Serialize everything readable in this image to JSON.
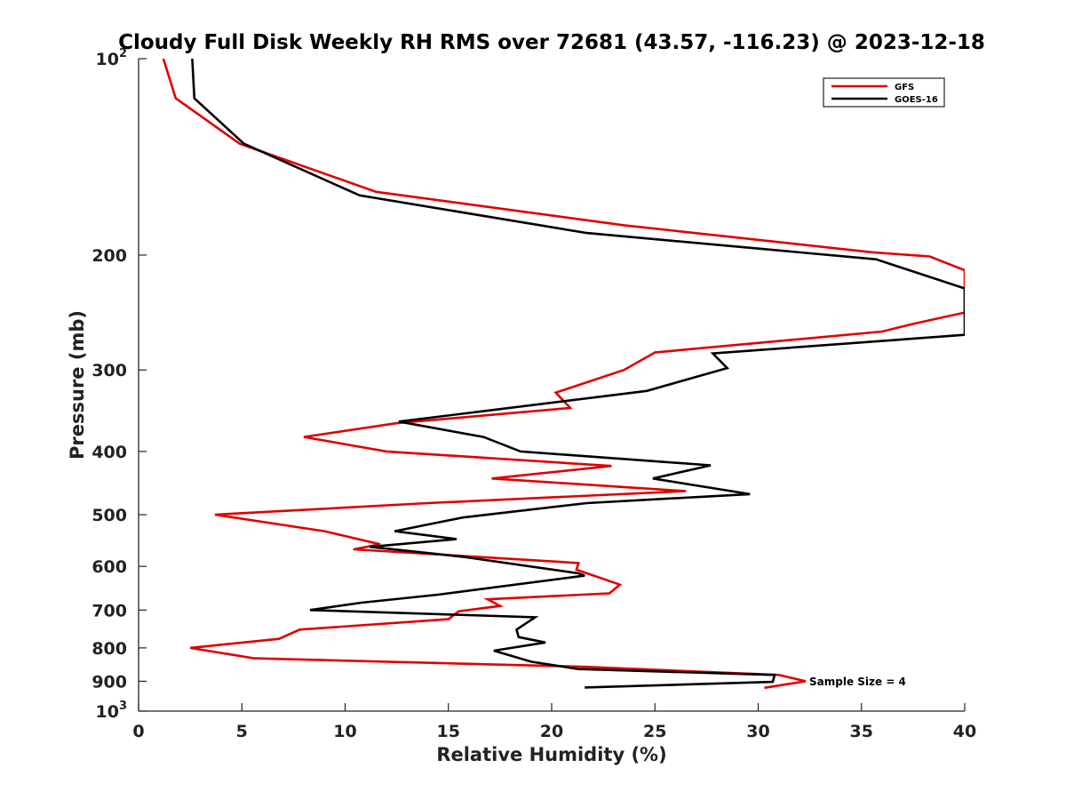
{
  "chart_data": {
    "type": "line",
    "title": "Cloudy Full Disk Weekly RH RMS over 72681 (43.57, -116.23) @ 2023-12-18",
    "xlabel": "Relative Humidity (%)",
    "ylabel": "Pressure (mb)",
    "xlim": [
      0,
      40
    ],
    "ylim": [
      100,
      1000
    ],
    "y_scale": "log",
    "y_reversed": true,
    "grid": false,
    "legend_position": "top-right",
    "x_ticks": [
      "0",
      "5",
      "10",
      "15",
      "20",
      "25",
      "30",
      "35",
      "40"
    ],
    "y_ticks": [
      {
        "value": 100,
        "label": "10",
        "exp": "2"
      },
      {
        "value": 200,
        "label": "200"
      },
      {
        "value": 300,
        "label": "300"
      },
      {
        "value": 400,
        "label": "400"
      },
      {
        "value": 500,
        "label": "500"
      },
      {
        "value": 600,
        "label": "600"
      },
      {
        "value": 700,
        "label": "700"
      },
      {
        "value": 800,
        "label": "800"
      },
      {
        "value": 900,
        "label": "900"
      },
      {
        "value": 1000,
        "label": "10",
        "exp": "3"
      }
    ],
    "annotation": "Sample Size = 4",
    "series": [
      {
        "name": "GFS",
        "color": "#e00000",
        "points": [
          [
            1.2,
            100
          ],
          [
            1.8,
            115
          ],
          [
            4.9,
            135
          ],
          [
            11.5,
            160
          ],
          [
            23.5,
            180
          ],
          [
            35.5,
            198
          ],
          [
            38.3,
            201
          ],
          [
            40,
            211
          ],
          [
            40,
            245
          ],
          [
            37.5,
            255
          ],
          [
            36.0,
            262
          ],
          [
            25.0,
            282
          ],
          [
            23.5,
            300
          ],
          [
            20.2,
            325
          ],
          [
            20.9,
            343
          ],
          [
            12.5,
            362
          ],
          [
            8.0,
            380
          ],
          [
            12.0,
            400
          ],
          [
            22.9,
            421
          ],
          [
            17.1,
            440
          ],
          [
            26.5,
            460
          ],
          [
            14.0,
            480
          ],
          [
            3.7,
            500
          ],
          [
            9.0,
            530
          ],
          [
            11.7,
            555
          ],
          [
            10.4,
            565
          ],
          [
            21.3,
            593
          ],
          [
            21.2,
            607
          ],
          [
            23.3,
            640
          ],
          [
            22.8,
            660
          ],
          [
            16.9,
            674
          ],
          [
            17.5,
            690
          ],
          [
            15.5,
            703
          ],
          [
            15.0,
            723
          ],
          [
            7.8,
            750
          ],
          [
            6.8,
            775
          ],
          [
            2.5,
            800
          ],
          [
            5.6,
            830
          ],
          [
            21.5,
            855
          ],
          [
            31.0,
            880
          ],
          [
            32.3,
            900
          ],
          [
            30.3,
            921
          ]
        ]
      },
      {
        "name": "GOES-16",
        "color": "#000000",
        "points": [
          [
            2.6,
            100
          ],
          [
            2.7,
            115
          ],
          [
            5.1,
            135
          ],
          [
            10.7,
            162
          ],
          [
            21.7,
            185
          ],
          [
            35.7,
            203
          ],
          [
            40,
            225
          ],
          [
            40,
            265
          ],
          [
            27.8,
            283
          ],
          [
            28.5,
            298
          ],
          [
            24.6,
            323
          ],
          [
            17.3,
            345
          ],
          [
            12.6,
            360
          ],
          [
            16.7,
            380
          ],
          [
            18.5,
            400
          ],
          [
            27.7,
            420
          ],
          [
            24.9,
            440
          ],
          [
            29.6,
            465
          ],
          [
            21.7,
            480
          ],
          [
            15.7,
            505
          ],
          [
            12.4,
            530
          ],
          [
            15.4,
            545
          ],
          [
            11.2,
            560
          ],
          [
            15.7,
            580
          ],
          [
            21.3,
            615
          ],
          [
            21.6,
            620
          ],
          [
            14.5,
            663
          ],
          [
            10.8,
            682
          ],
          [
            8.3,
            700
          ],
          [
            19.2,
            718
          ],
          [
            18.3,
            750
          ],
          [
            18.4,
            770
          ],
          [
            19.7,
            785
          ],
          [
            17.2,
            808
          ],
          [
            19.0,
            840
          ],
          [
            21.3,
            862
          ],
          [
            30.8,
            880
          ],
          [
            30.7,
            902
          ],
          [
            21.6,
            920
          ]
        ]
      }
    ]
  }
}
